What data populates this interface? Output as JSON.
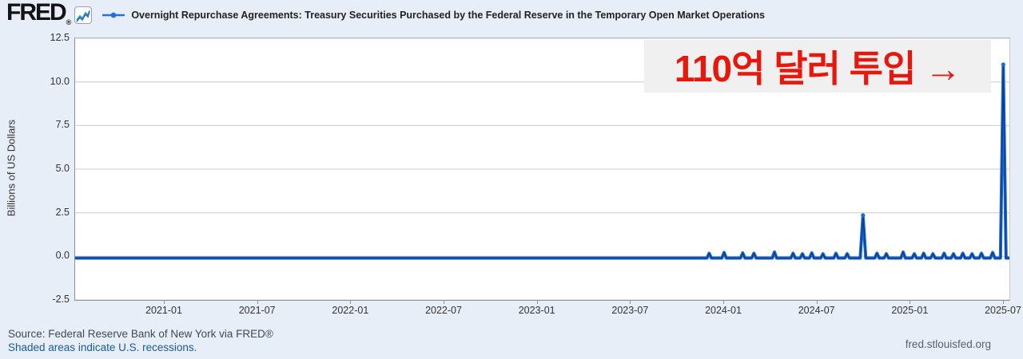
{
  "header": {
    "logo": "FRED",
    "logo_registered": "®",
    "series_title": "Overnight Repurchase Agreements: Treasury Securities Purchased by the Federal Reserve in the Temporary Open Market Operations"
  },
  "annotation": {
    "text": "110억 달러 투입 →",
    "color": "#e8170c",
    "background": "#f0f0f0"
  },
  "footer": {
    "source": "Source: Federal Reserve Bank of New York via FRED®",
    "recessions_note": "Shaded areas indicate U.S. recessions.",
    "site": "fred.stlouisfed.org"
  },
  "colors": {
    "page_background": "#e8eef7",
    "plot_background": "#ffffff",
    "gridline": "#cbcbcb",
    "line": "#1e6bd2",
    "line_core": "#0a3d8f",
    "annotation_red": "#e8170c"
  },
  "chart_data": {
    "type": "line",
    "title": "Overnight Repurchase Agreements: Treasury Securities Purchased by the Federal Reserve in the Temporary Open Market Operations",
    "xlabel": "",
    "ylabel": "Billions of US Dollars",
    "ylim": [
      -2.5,
      12.5
    ],
    "yticks": [
      12.5,
      10.0,
      7.5,
      5.0,
      2.5,
      0.0,
      -2.5
    ],
    "xlim_decimal_years": [
      2020.52,
      2025.53
    ],
    "xticks": [
      {
        "t": 2021.0,
        "label": "2021-01"
      },
      {
        "t": 2021.5,
        "label": "2021-07"
      },
      {
        "t": 2022.0,
        "label": "2022-01"
      },
      {
        "t": 2022.5,
        "label": "2022-07"
      },
      {
        "t": 2023.0,
        "label": "2023-01"
      },
      {
        "t": 2023.5,
        "label": "2023-07"
      },
      {
        "t": 2024.0,
        "label": "2024-01"
      },
      {
        "t": 2024.5,
        "label": "2024-07"
      },
      {
        "t": 2025.0,
        "label": "2025-01"
      },
      {
        "t": 2025.5,
        "label": "2025-07"
      }
    ],
    "grid": true,
    "legend_position": "top",
    "series": [
      {
        "name": "Overnight Repurchase Agreements: Treasury Securities Purchased by the Federal Reserve in the Temporary Open Market Operations",
        "units": "Billions of US Dollars",
        "points": [
          [
            2020.52,
            -0.1
          ],
          [
            2023.88,
            -0.1
          ],
          [
            2023.908,
            -0.1
          ],
          [
            2023.92,
            0.18
          ],
          [
            2023.932,
            -0.1
          ],
          [
            2023.988,
            -0.1
          ],
          [
            2024.0,
            0.22
          ],
          [
            2024.012,
            -0.1
          ],
          [
            2024.088,
            -0.1
          ],
          [
            2024.1,
            0.2
          ],
          [
            2024.112,
            -0.1
          ],
          [
            2024.148,
            -0.1
          ],
          [
            2024.16,
            0.18
          ],
          [
            2024.172,
            -0.1
          ],
          [
            2024.258,
            -0.1
          ],
          [
            2024.27,
            0.25
          ],
          [
            2024.282,
            -0.1
          ],
          [
            2024.358,
            -0.1
          ],
          [
            2024.37,
            0.18
          ],
          [
            2024.382,
            -0.1
          ],
          [
            2024.408,
            -0.1
          ],
          [
            2024.42,
            0.15
          ],
          [
            2024.432,
            -0.1
          ],
          [
            2024.458,
            -0.1
          ],
          [
            2024.47,
            0.2
          ],
          [
            2024.482,
            -0.1
          ],
          [
            2024.518,
            -0.1
          ],
          [
            2024.53,
            0.15
          ],
          [
            2024.542,
            -0.1
          ],
          [
            2024.588,
            -0.1
          ],
          [
            2024.6,
            0.18
          ],
          [
            2024.612,
            -0.1
          ],
          [
            2024.648,
            -0.1
          ],
          [
            2024.66,
            0.15
          ],
          [
            2024.672,
            -0.1
          ],
          [
            2024.73,
            -0.1
          ],
          [
            2024.745,
            2.35
          ],
          [
            2024.76,
            -0.1
          ],
          [
            2024.808,
            -0.1
          ],
          [
            2024.82,
            0.18
          ],
          [
            2024.832,
            -0.1
          ],
          [
            2024.858,
            -0.1
          ],
          [
            2024.87,
            0.15
          ],
          [
            2024.882,
            -0.1
          ],
          [
            2024.948,
            -0.1
          ],
          [
            2024.96,
            0.25
          ],
          [
            2024.972,
            -0.1
          ],
          [
            2025.008,
            -0.1
          ],
          [
            2025.02,
            0.15
          ],
          [
            2025.032,
            -0.1
          ],
          [
            2025.058,
            -0.1
          ],
          [
            2025.07,
            0.18
          ],
          [
            2025.082,
            -0.1
          ],
          [
            2025.108,
            -0.1
          ],
          [
            2025.12,
            0.15
          ],
          [
            2025.132,
            -0.1
          ],
          [
            2025.168,
            -0.1
          ],
          [
            2025.18,
            0.18
          ],
          [
            2025.192,
            -0.1
          ],
          [
            2025.218,
            -0.1
          ],
          [
            2025.23,
            0.15
          ],
          [
            2025.242,
            -0.1
          ],
          [
            2025.268,
            -0.1
          ],
          [
            2025.28,
            0.18
          ],
          [
            2025.292,
            -0.1
          ],
          [
            2025.318,
            -0.1
          ],
          [
            2025.33,
            0.15
          ],
          [
            2025.342,
            -0.1
          ],
          [
            2025.368,
            -0.1
          ],
          [
            2025.38,
            0.18
          ],
          [
            2025.392,
            -0.1
          ],
          [
            2025.428,
            -0.1
          ],
          [
            2025.44,
            0.22
          ],
          [
            2025.452,
            -0.1
          ],
          [
            2025.482,
            -0.1
          ],
          [
            2025.497,
            11.0
          ],
          [
            2025.512,
            -0.1
          ],
          [
            2025.53,
            -0.1
          ]
        ],
        "notable_points": [
          {
            "t": 2024.745,
            "value": 2.35
          },
          {
            "t": 2025.497,
            "value": 11.0
          }
        ]
      }
    ]
  }
}
